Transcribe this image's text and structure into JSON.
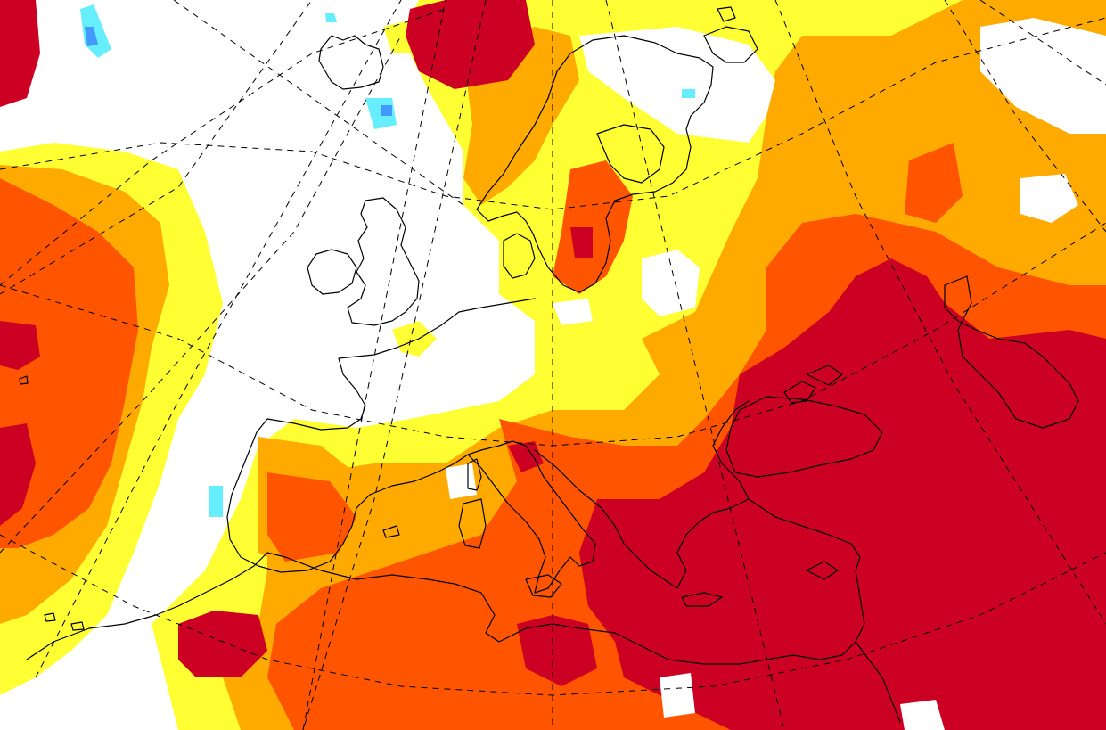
{
  "map": {
    "type": "anomaly-map",
    "region": "Europe",
    "colors": {
      "background": "#ffffff",
      "light_yellow": "#ffff33",
      "orange_light": "#ffaa00",
      "orange": "#ff5500",
      "dark_red": "#cc0022",
      "cyan": "#66eeff",
      "blue": "#4499ff",
      "coastline": "#000000",
      "graticule": "#000000"
    }
  }
}
